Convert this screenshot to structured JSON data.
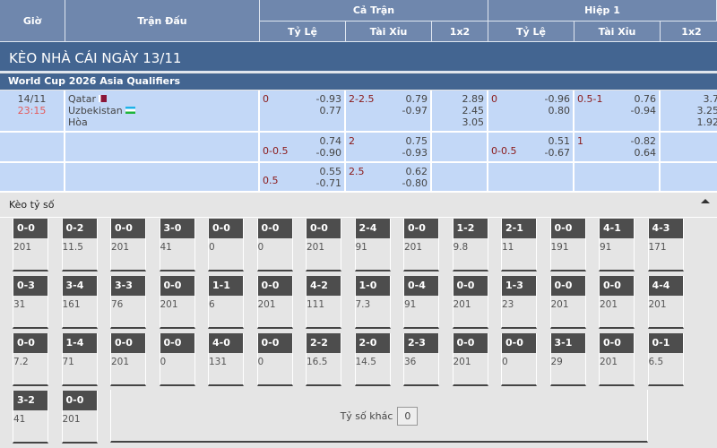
{
  "header": {
    "time": "Giờ",
    "match": "Trận Đấu",
    "full": "Cả Trận",
    "half": "Hiệp 1",
    "hcp": "Tỷ Lệ",
    "ou": "Tài Xỉu",
    "x12": "1x2"
  },
  "banner": "KÈO NHÀ CÁI NGÀY 13/11",
  "league": "World Cup 2026 Asia Qualifiers",
  "match": {
    "date": "14/11",
    "time": "23:15",
    "home": "Qatar",
    "away": "Uzbekistan",
    "draw": "Hòa"
  },
  "rows": [
    {
      "ft_hcp_line": "0",
      "ft_hcp": [
        "-0.93",
        "0.77"
      ],
      "ft_ou_line": "2-2.5",
      "ft_ou": [
        "0.79",
        "-0.97"
      ],
      "ft_1x2": [
        "2.89",
        "2.45",
        "3.05"
      ],
      "h1_hcp_line": "0",
      "h1_hcp": [
        "-0.96",
        "0.80"
      ],
      "h1_ou_line": "0.5-1",
      "h1_ou": [
        "0.76",
        "-0.94"
      ],
      "h1_1x2": [
        "3.7",
        "3.25",
        "1.92"
      ]
    },
    {
      "ft_hcp_line": "0-0.5",
      "ft_hcp": [
        "0.74",
        "-0.90"
      ],
      "ft_ou_line": "2",
      "ft_ou": [
        "0.75",
        "-0.93"
      ],
      "h1_hcp_line": "0-0.5",
      "h1_hcp": [
        "0.51",
        "-0.67"
      ],
      "h1_ou_line": "1",
      "h1_ou": [
        "-0.82",
        "0.64"
      ]
    },
    {
      "ft_hcp_line": "0.5",
      "ft_hcp": [
        "0.55",
        "-0.71"
      ],
      "ft_ou_line": "2.5",
      "ft_ou": [
        "0.62",
        "-0.80"
      ]
    }
  ],
  "score_section": {
    "title": "Kèo tỷ số",
    "other_label": "Tỷ số khác",
    "other_value": "0"
  },
  "scores": [
    [
      "0-0",
      "201"
    ],
    [
      "0-2",
      "11.5"
    ],
    [
      "0-0",
      "201"
    ],
    [
      "3-0",
      "41"
    ],
    [
      "0-0",
      "0"
    ],
    [
      "0-0",
      "0"
    ],
    [
      "0-0",
      "201"
    ],
    [
      "2-4",
      "91"
    ],
    [
      "0-0",
      "201"
    ],
    [
      "1-2",
      "9.8"
    ],
    [
      "2-1",
      "11"
    ],
    [
      "0-0",
      "191"
    ],
    [
      "4-1",
      "91"
    ],
    [
      "4-3",
      "171"
    ],
    [
      "0-3",
      "31"
    ],
    [
      "3-4",
      "161"
    ],
    [
      "3-3",
      "76"
    ],
    [
      "0-0",
      "201"
    ],
    [
      "1-1",
      "6"
    ],
    [
      "0-0",
      "201"
    ],
    [
      "4-2",
      "111"
    ],
    [
      "1-0",
      "7.3"
    ],
    [
      "0-4",
      "91"
    ],
    [
      "0-0",
      "201"
    ],
    [
      "1-3",
      "23"
    ],
    [
      "0-0",
      "201"
    ],
    [
      "0-0",
      "201"
    ],
    [
      "4-4",
      "201"
    ],
    [
      "0-0",
      "7.2"
    ],
    [
      "1-4",
      "71"
    ],
    [
      "0-0",
      "201"
    ],
    [
      "0-0",
      "0"
    ],
    [
      "4-0",
      "131"
    ],
    [
      "0-0",
      "0"
    ],
    [
      "2-2",
      "16.5"
    ],
    [
      "2-0",
      "14.5"
    ],
    [
      "2-3",
      "36"
    ],
    [
      "0-0",
      "201"
    ],
    [
      "0-0",
      "0"
    ],
    [
      "3-1",
      "29"
    ],
    [
      "0-0",
      "201"
    ],
    [
      "0-1",
      "6.5"
    ],
    [
      "3-2",
      "41"
    ],
    [
      "0-0",
      "201"
    ]
  ]
}
